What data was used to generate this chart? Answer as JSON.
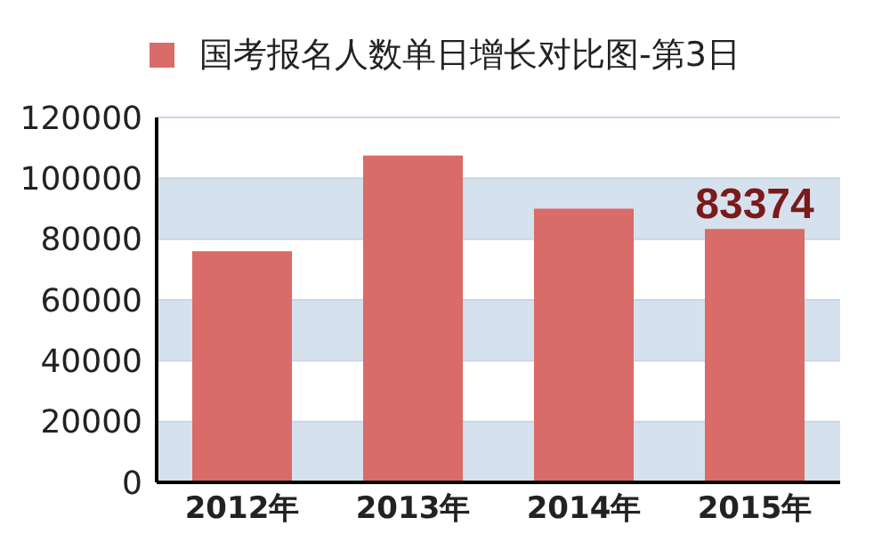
{
  "chart_data": {
    "type": "bar",
    "categories": [
      "2012年",
      "2013年",
      "2014年",
      "2015年"
    ],
    "series": [
      {
        "name": "国考报名人数单日增长对比图-第3日",
        "color": "#d96b68",
        "values": [
          76000,
          107500,
          90000,
          83374
        ],
        "value_labels": [
          null,
          null,
          null,
          "83374"
        ]
      }
    ],
    "ylim": [
      0,
      120000
    ],
    "yticks": [
      0,
      20000,
      40000,
      60000,
      80000,
      100000,
      120000
    ],
    "grid": "y",
    "legend": "top"
  }
}
